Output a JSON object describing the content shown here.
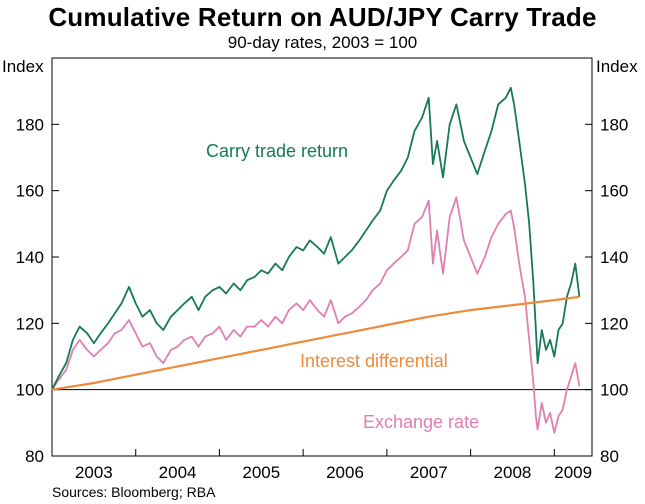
{
  "chart_data": {
    "type": "line",
    "title": "Cumulative Return on AUD/JPY Carry Trade",
    "subtitle": "90-day rates, 2003 = 100",
    "ylabel_left": "Index",
    "ylabel_right": "Index",
    "ylim": [
      80,
      200
    ],
    "yticks": [
      80,
      100,
      120,
      140,
      160,
      180
    ],
    "xlim": [
      2003.0,
      2009.45
    ],
    "xticks": [
      "2003",
      "2004",
      "2005",
      "2006",
      "2007",
      "2008",
      "2009"
    ],
    "reference_line": 100,
    "grid": false,
    "source": "Sources: Bloomberg; RBA",
    "series": [
      {
        "name": "Carry trade return",
        "color": "#157a55",
        "points": [
          [
            2003.0,
            100
          ],
          [
            2003.08,
            104
          ],
          [
            2003.17,
            108
          ],
          [
            2003.25,
            115
          ],
          [
            2003.33,
            119
          ],
          [
            2003.42,
            117
          ],
          [
            2003.5,
            114
          ],
          [
            2003.58,
            117
          ],
          [
            2003.67,
            120
          ],
          [
            2003.75,
            123
          ],
          [
            2003.83,
            126
          ],
          [
            2003.92,
            131
          ],
          [
            2004.0,
            126
          ],
          [
            2004.08,
            122
          ],
          [
            2004.17,
            124
          ],
          [
            2004.25,
            120
          ],
          [
            2004.33,
            118
          ],
          [
            2004.42,
            122
          ],
          [
            2004.5,
            124
          ],
          [
            2004.58,
            126
          ],
          [
            2004.67,
            128
          ],
          [
            2004.75,
            124
          ],
          [
            2004.83,
            128
          ],
          [
            2004.92,
            130
          ],
          [
            2005.0,
            131
          ],
          [
            2005.08,
            129
          ],
          [
            2005.17,
            132
          ],
          [
            2005.25,
            130
          ],
          [
            2005.33,
            133
          ],
          [
            2005.42,
            134
          ],
          [
            2005.5,
            136
          ],
          [
            2005.58,
            135
          ],
          [
            2005.67,
            138
          ],
          [
            2005.75,
            136
          ],
          [
            2005.83,
            140
          ],
          [
            2005.92,
            143
          ],
          [
            2006.0,
            142
          ],
          [
            2006.08,
            145
          ],
          [
            2006.17,
            143
          ],
          [
            2006.25,
            141
          ],
          [
            2006.33,
            146
          ],
          [
            2006.42,
            138
          ],
          [
            2006.5,
            140
          ],
          [
            2006.58,
            142
          ],
          [
            2006.67,
            145
          ],
          [
            2006.75,
            148
          ],
          [
            2006.83,
            151
          ],
          [
            2006.92,
            154
          ],
          [
            2007.0,
            160
          ],
          [
            2007.08,
            163
          ],
          [
            2007.17,
            166
          ],
          [
            2007.25,
            170
          ],
          [
            2007.33,
            178
          ],
          [
            2007.42,
            182
          ],
          [
            2007.5,
            188
          ],
          [
            2007.55,
            168
          ],
          [
            2007.6,
            175
          ],
          [
            2007.67,
            164
          ],
          [
            2007.75,
            180
          ],
          [
            2007.83,
            186
          ],
          [
            2007.92,
            175
          ],
          [
            2008.0,
            170
          ],
          [
            2008.08,
            165
          ],
          [
            2008.17,
            172
          ],
          [
            2008.25,
            178
          ],
          [
            2008.33,
            186
          ],
          [
            2008.42,
            188
          ],
          [
            2008.48,
            191
          ],
          [
            2008.52,
            186
          ],
          [
            2008.58,
            175
          ],
          [
            2008.65,
            162
          ],
          [
            2008.7,
            150
          ],
          [
            2008.75,
            132
          ],
          [
            2008.78,
            118
          ],
          [
            2008.8,
            108
          ],
          [
            2008.85,
            118
          ],
          [
            2008.9,
            112
          ],
          [
            2008.95,
            115
          ],
          [
            2009.0,
            110
          ],
          [
            2009.05,
            118
          ],
          [
            2009.1,
            120
          ],
          [
            2009.15,
            128
          ],
          [
            2009.2,
            132
          ],
          [
            2009.25,
            138
          ],
          [
            2009.3,
            128
          ]
        ]
      },
      {
        "name": "Exchange rate",
        "color": "#e07fb0",
        "points": [
          [
            2003.0,
            100
          ],
          [
            2003.08,
            103
          ],
          [
            2003.17,
            106
          ],
          [
            2003.25,
            112
          ],
          [
            2003.33,
            115
          ],
          [
            2003.42,
            112
          ],
          [
            2003.5,
            110
          ],
          [
            2003.58,
            112
          ],
          [
            2003.67,
            114
          ],
          [
            2003.75,
            117
          ],
          [
            2003.83,
            118
          ],
          [
            2003.92,
            121
          ],
          [
            2004.0,
            117
          ],
          [
            2004.08,
            113
          ],
          [
            2004.17,
            114
          ],
          [
            2004.25,
            110
          ],
          [
            2004.33,
            108
          ],
          [
            2004.42,
            112
          ],
          [
            2004.5,
            113
          ],
          [
            2004.58,
            115
          ],
          [
            2004.67,
            116
          ],
          [
            2004.75,
            113
          ],
          [
            2004.83,
            116
          ],
          [
            2004.92,
            117
          ],
          [
            2005.0,
            119
          ],
          [
            2005.08,
            115
          ],
          [
            2005.17,
            118
          ],
          [
            2005.25,
            116
          ],
          [
            2005.33,
            119
          ],
          [
            2005.42,
            119
          ],
          [
            2005.5,
            121
          ],
          [
            2005.58,
            119
          ],
          [
            2005.67,
            122
          ],
          [
            2005.75,
            120
          ],
          [
            2005.83,
            124
          ],
          [
            2005.92,
            126
          ],
          [
            2006.0,
            124
          ],
          [
            2006.08,
            127
          ],
          [
            2006.17,
            124
          ],
          [
            2006.25,
            122
          ],
          [
            2006.33,
            127
          ],
          [
            2006.42,
            120
          ],
          [
            2006.5,
            122
          ],
          [
            2006.58,
            123
          ],
          [
            2006.67,
            125
          ],
          [
            2006.75,
            127
          ],
          [
            2006.83,
            130
          ],
          [
            2006.92,
            132
          ],
          [
            2007.0,
            136
          ],
          [
            2007.08,
            138
          ],
          [
            2007.17,
            140
          ],
          [
            2007.25,
            142
          ],
          [
            2007.33,
            150
          ],
          [
            2007.42,
            152
          ],
          [
            2007.5,
            157
          ],
          [
            2007.55,
            138
          ],
          [
            2007.6,
            148
          ],
          [
            2007.67,
            135
          ],
          [
            2007.75,
            152
          ],
          [
            2007.83,
            158
          ],
          [
            2007.92,
            145
          ],
          [
            2008.0,
            140
          ],
          [
            2008.08,
            135
          ],
          [
            2008.17,
            140
          ],
          [
            2008.25,
            146
          ],
          [
            2008.33,
            150
          ],
          [
            2008.42,
            153
          ],
          [
            2008.48,
            154
          ],
          [
            2008.52,
            149
          ],
          [
            2008.58,
            138
          ],
          [
            2008.65,
            128
          ],
          [
            2008.7,
            115
          ],
          [
            2008.75,
            102
          ],
          [
            2008.78,
            92
          ],
          [
            2008.8,
            88
          ],
          [
            2008.85,
            96
          ],
          [
            2008.9,
            90
          ],
          [
            2008.95,
            93
          ],
          [
            2009.0,
            87
          ],
          [
            2009.05,
            92
          ],
          [
            2009.1,
            94
          ],
          [
            2009.15,
            100
          ],
          [
            2009.2,
            104
          ],
          [
            2009.25,
            108
          ],
          [
            2009.3,
            101
          ]
        ]
      },
      {
        "name": "Interest differential",
        "color": "#f08a3a",
        "points": [
          [
            2003.0,
            100
          ],
          [
            2003.5,
            102
          ],
          [
            2004.0,
            104.5
          ],
          [
            2004.5,
            107
          ],
          [
            2005.0,
            109.5
          ],
          [
            2005.5,
            112
          ],
          [
            2006.0,
            114.5
          ],
          [
            2006.5,
            117
          ],
          [
            2007.0,
            119.5
          ],
          [
            2007.5,
            122
          ],
          [
            2008.0,
            124
          ],
          [
            2008.5,
            125.5
          ],
          [
            2009.0,
            127
          ],
          [
            2009.3,
            128
          ]
        ]
      }
    ]
  }
}
